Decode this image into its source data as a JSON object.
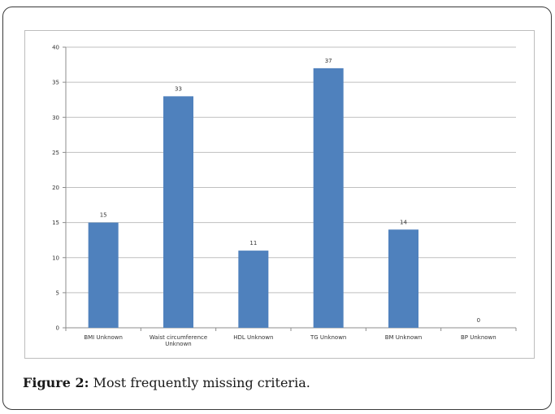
{
  "figure": {
    "caption_label": "Figure 2:",
    "caption_text": " Most frequently missing criteria."
  },
  "chart_data": {
    "type": "bar",
    "categories": [
      [
        "BMI Unknown"
      ],
      [
        "Waist circumference",
        "Unknown"
      ],
      [
        "HDL Unknown"
      ],
      [
        "TG Unknown"
      ],
      [
        "BM Unknown"
      ],
      [
        "BP Unknown"
      ]
    ],
    "values": [
      15,
      33,
      11,
      37,
      14,
      0
    ],
    "ylim": [
      0,
      40
    ],
    "yticks": [
      0,
      5,
      10,
      15,
      20,
      25,
      30,
      35,
      40
    ],
    "grid": true,
    "data_labels": true,
    "colors": {
      "bar": "#4f81bd",
      "grid": "#bfbfbf",
      "axis": "#8c8c8c"
    }
  }
}
